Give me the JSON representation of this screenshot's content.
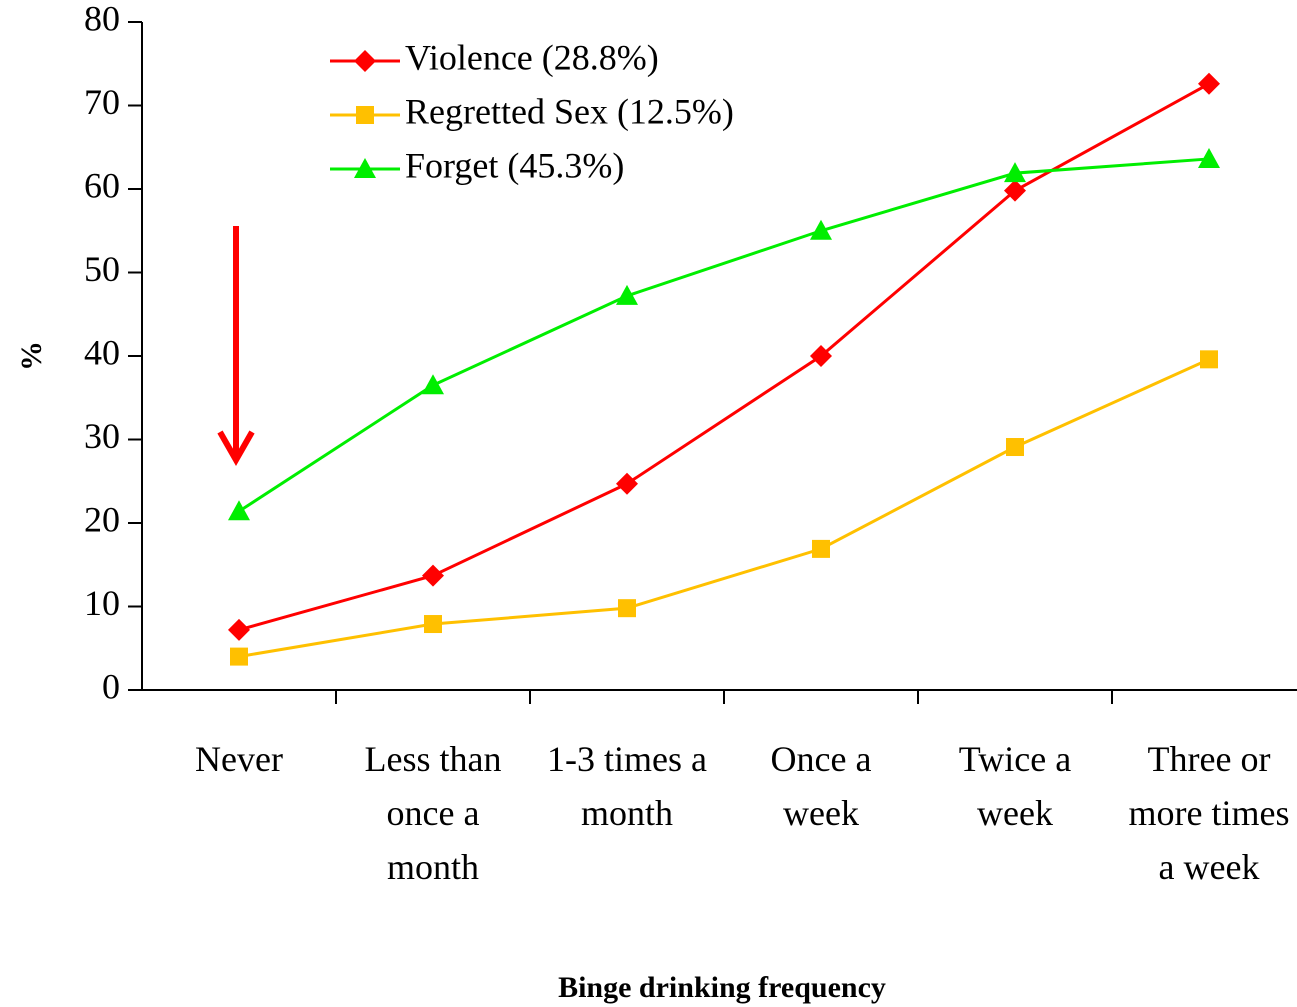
{
  "chart_data": {
    "type": "line",
    "xlabel": "Binge drinking frequency",
    "ylabel": "%",
    "categories": [
      "Never",
      "Less than once a month",
      "1-3 times a month",
      "Once a week",
      "Twice a week",
      "Three or more times a week"
    ],
    "series": [
      {
        "name": "Violence (28.8%)",
        "color": "#ff0000",
        "marker": "diamond",
        "values": [
          7.2,
          13.7,
          24.7,
          40,
          59.8,
          72.6
        ]
      },
      {
        "name": "Regretted Sex (12.5%)",
        "color": "#ffc000",
        "marker": "square",
        "values": [
          4.0,
          7.9,
          9.8,
          16.9,
          29.1,
          39.6
        ]
      },
      {
        "name": "Forget (45.3%)",
        "color": "#00ee00",
        "marker": "triangle",
        "values": [
          21.4,
          36.5,
          47.2,
          55.0,
          61.9,
          63.6
        ]
      }
    ],
    "ylim": [
      0,
      80
    ],
    "yticks": [
      0,
      10,
      20,
      30,
      40,
      50,
      60,
      70,
      80
    ],
    "legend": "top-left",
    "grid": false
  }
}
